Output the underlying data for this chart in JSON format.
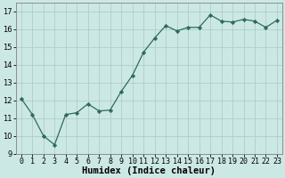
{
  "x": [
    0,
    1,
    2,
    3,
    4,
    5,
    6,
    7,
    8,
    9,
    10,
    11,
    12,
    13,
    14,
    15,
    16,
    17,
    18,
    19,
    20,
    21,
    22,
    23
  ],
  "y": [
    12.1,
    11.2,
    10.0,
    9.5,
    11.2,
    11.3,
    11.8,
    11.4,
    11.45,
    12.5,
    13.4,
    14.7,
    15.5,
    16.2,
    15.9,
    16.1,
    16.1,
    16.8,
    16.45,
    16.4,
    16.55,
    16.45,
    16.1,
    16.5
  ],
  "line_color": "#2e6b5e",
  "marker": "D",
  "marker_size": 2.2,
  "bg_color": "#cce8e4",
  "grid_color": "#b0cdc8",
  "xlabel": "Humidex (Indice chaleur)",
  "xlim": [
    -0.5,
    23.5
  ],
  "ylim": [
    9,
    17.5
  ],
  "yticks": [
    9,
    10,
    11,
    12,
    13,
    14,
    15,
    16,
    17
  ],
  "xtick_labels": [
    "0",
    "1",
    "2",
    "3",
    "4",
    "5",
    "6",
    "7",
    "8",
    "9",
    "10",
    "11",
    "12",
    "13",
    "14",
    "15",
    "16",
    "17",
    "18",
    "19",
    "20",
    "21",
    "22",
    "23"
  ],
  "tick_fontsize": 6.0,
  "xlabel_fontsize": 7.5
}
